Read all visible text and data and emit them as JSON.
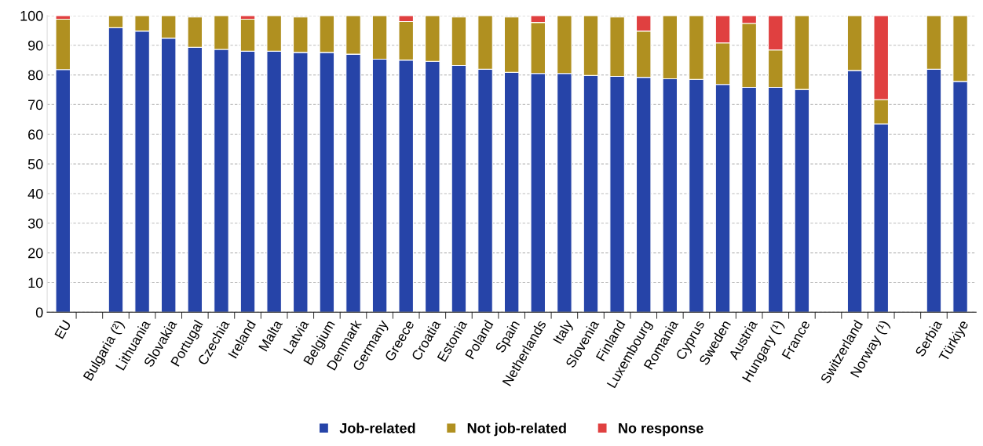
{
  "chart_data": {
    "type": "bar",
    "stacked": true,
    "categories": [
      "EU",
      null,
      "Bulgaria (²)",
      "Lithuania",
      "Slovakia",
      "Portugal",
      "Czechia",
      "Ireland",
      "Malta",
      "Latvia",
      "Belgium",
      "Denmark",
      "Germany",
      "Greece",
      "Croatia",
      "Estonia",
      "Poland",
      "Spain",
      "Netherlands",
      "Italy",
      "Slovenia",
      "Finland",
      "Luxembourg",
      "Romania",
      "Cyprus",
      "Sweden",
      "Austria",
      "Hungary (¹)",
      "France",
      null,
      "Switzerland",
      "Norway (¹)",
      null,
      "Serbia",
      "Türkiye"
    ],
    "series": [
      {
        "name": "Job-related",
        "color": "#2644a8",
        "values": [
          81.8,
          null,
          95.9,
          94.8,
          92.4,
          89.3,
          88.6,
          88.0,
          88.0,
          87.6,
          87.6,
          87.0,
          85.3,
          85.0,
          84.6,
          83.2,
          81.9,
          80.9,
          80.5,
          80.5,
          79.8,
          79.5,
          79.2,
          78.7,
          78.5,
          76.8,
          75.8,
          75.8,
          75.1,
          null,
          81.5,
          63.5,
          null,
          81.9,
          77.8
        ]
      },
      {
        "name": "Not job-related",
        "color": "#b09020",
        "values": [
          17.0,
          null,
          4.1,
          5.2,
          7.6,
          10.2,
          11.4,
          10.8,
          12.0,
          11.9,
          12.4,
          13.0,
          14.7,
          13.0,
          15.4,
          16.3,
          18.1,
          18.6,
          17.2,
          19.5,
          20.2,
          20.0,
          15.6,
          21.3,
          21.5,
          14.0,
          21.6,
          12.6,
          24.9,
          null,
          18.5,
          8.2,
          null,
          18.1,
          22.2
        ]
      },
      {
        "name": "No response",
        "color": "#e04040",
        "values": [
          1.2,
          null,
          null,
          null,
          null,
          null,
          null,
          1.2,
          null,
          null,
          null,
          null,
          null,
          2.0,
          null,
          null,
          null,
          null,
          2.3,
          null,
          null,
          null,
          5.2,
          null,
          null,
          9.2,
          2.6,
          11.6,
          null,
          null,
          null,
          28.3,
          null,
          null,
          null
        ]
      }
    ],
    "ylim": [
      0,
      100
    ],
    "yticks": [
      0,
      10,
      20,
      30,
      40,
      50,
      60,
      70,
      80,
      90,
      100
    ],
    "grid": "y",
    "legend": "bottom"
  }
}
